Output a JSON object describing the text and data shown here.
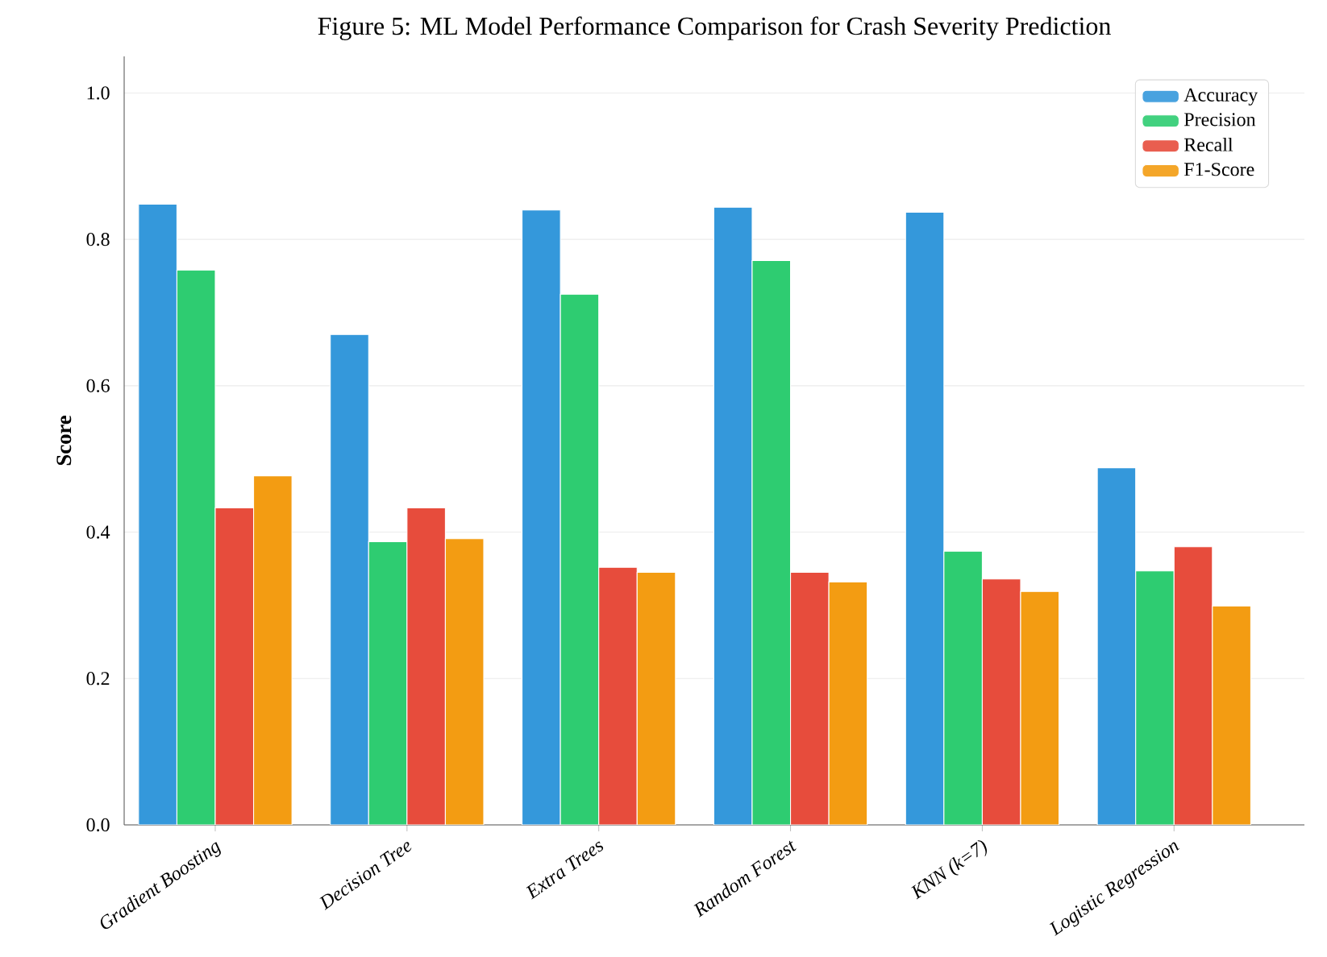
{
  "chart_data": {
    "type": "bar",
    "title": "Figure 5: ML Model Performance Comparison for Crash Severity Prediction",
    "ylabel": "Score",
    "categories": [
      "Gradient Boosting",
      "Decision Tree",
      "Extra Trees",
      "Random Forest",
      "KNN (k=7)",
      "Logistic Regression"
    ],
    "series": [
      {
        "name": "Accuracy",
        "color": "#3498db",
        "values": [
          0.848,
          0.67,
          0.84,
          0.844,
          0.837,
          0.488
        ]
      },
      {
        "name": "Precision",
        "color": "#2ecc71",
        "values": [
          0.758,
          0.387,
          0.725,
          0.771,
          0.374,
          0.347
        ]
      },
      {
        "name": "Recall",
        "color": "#e74c3c",
        "values": [
          0.433,
          0.433,
          0.352,
          0.345,
          0.336,
          0.38
        ]
      },
      {
        "name": "F1-Score",
        "color": "#f39c12",
        "values": [
          0.477,
          0.391,
          0.345,
          0.332,
          0.319,
          0.299
        ]
      }
    ],
    "ylim": [
      0,
      1.05
    ],
    "yticks": [
      {
        "value": 0,
        "label": "0.0"
      },
      {
        "value": 0.2,
        "label": "0.2"
      },
      {
        "value": 0.4,
        "label": "0.4"
      },
      {
        "value": 0.6,
        "label": "0.6"
      },
      {
        "value": 0.8,
        "label": "0.8"
      },
      {
        "value": 1.0,
        "label": "1.0"
      }
    ],
    "grid": "y",
    "legend": "top right"
  }
}
